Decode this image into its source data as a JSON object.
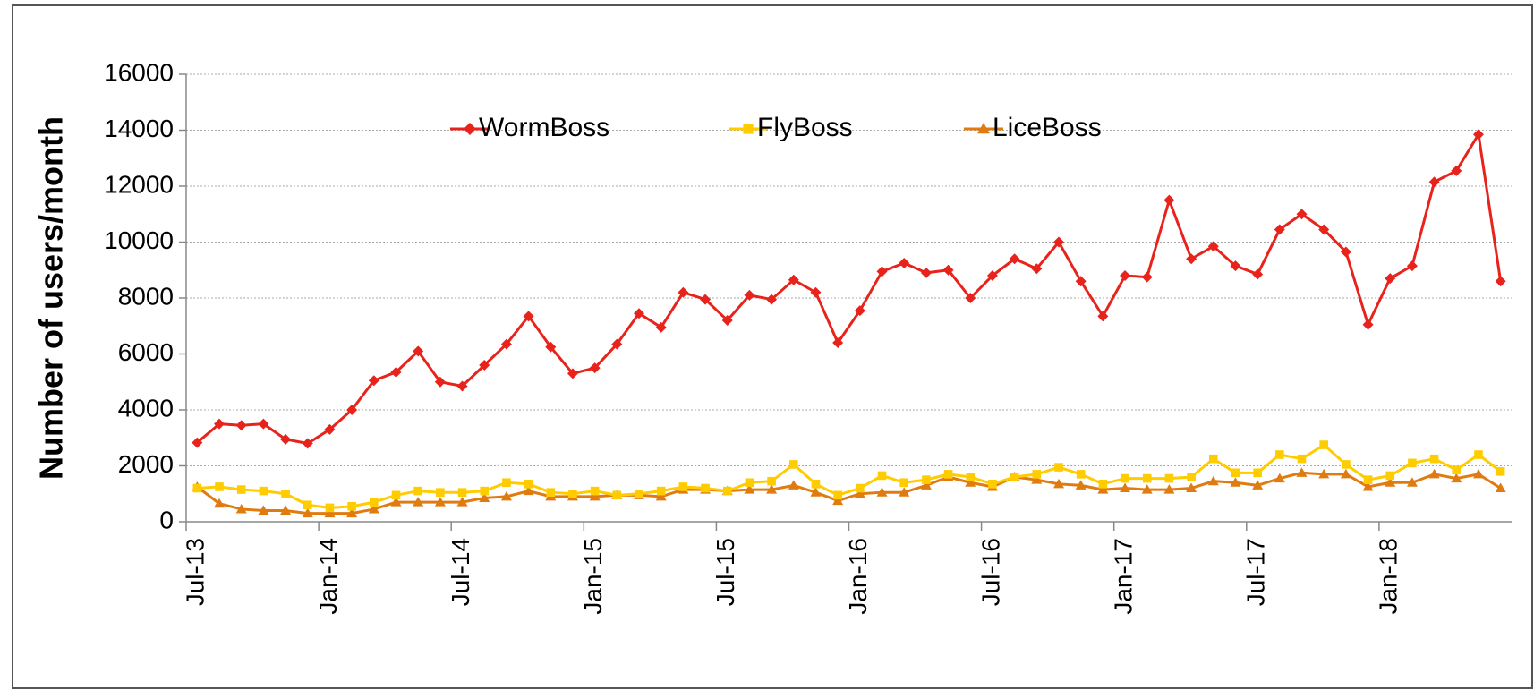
{
  "chart_data": {
    "type": "line",
    "y_label": "Number of users/month",
    "categories": [
      "Jul-13",
      null,
      null,
      null,
      null,
      null,
      "Jan-14",
      null,
      null,
      null,
      null,
      null,
      "Jul-14",
      null,
      null,
      null,
      null,
      null,
      "Jan-15",
      null,
      null,
      null,
      null,
      null,
      "Jul-15",
      null,
      null,
      null,
      null,
      null,
      "Jan-16",
      null,
      null,
      null,
      null,
      null,
      "Jul-16",
      null,
      null,
      null,
      null,
      null,
      "Jan-17",
      null,
      null,
      null,
      null,
      null,
      "Jul-17",
      null,
      null,
      null,
      null,
      null,
      "Jan-18",
      null,
      null,
      null,
      null,
      null
    ],
    "series": [
      {
        "name": "WormBoss",
        "color": "#e8231b",
        "marker": "diamond",
        "values": [
          2830,
          3500,
          3450,
          3500,
          2950,
          2800,
          3300,
          4000,
          5050,
          5350,
          6100,
          5000,
          4850,
          5600,
          6350,
          7350,
          6250,
          5300,
          5500,
          6350,
          7450,
          6950,
          8200,
          7950,
          7200,
          8100,
          7950,
          8650,
          8200,
          6400,
          7550,
          8950,
          9250,
          8900,
          9000,
          8000,
          8800,
          9400,
          9050,
          10000,
          8600,
          7350,
          8800,
          8750,
          11500,
          9400,
          9850,
          9150,
          8850,
          10450,
          11000,
          10450,
          9650,
          7050,
          8700,
          9150,
          12150,
          12550,
          13850,
          8600
        ]
      },
      {
        "name": "FlyBoss",
        "color": "#ffcc00",
        "marker": "square",
        "values": [
          1200,
          1250,
          1150,
          1100,
          1000,
          600,
          500,
          550,
          700,
          950,
          1100,
          1050,
          1050,
          1100,
          1400,
          1350,
          1050,
          1000,
          1100,
          950,
          1000,
          1100,
          1250,
          1200,
          1100,
          1400,
          1450,
          2050,
          1350,
          950,
          1200,
          1650,
          1400,
          1500,
          1700,
          1600,
          1350,
          1600,
          1700,
          1950,
          1700,
          1350,
          1550,
          1550,
          1550,
          1600,
          2250,
          1750,
          1750,
          2400,
          2250,
          2750,
          2050,
          1500,
          1650,
          2100,
          2250,
          1850,
          2400,
          1800
        ]
      },
      {
        "name": "LiceBoss",
        "color": "#e07b10",
        "marker": "triangle",
        "values": [
          1250,
          650,
          450,
          400,
          400,
          300,
          300,
          300,
          450,
          700,
          700,
          700,
          700,
          850,
          900,
          1100,
          900,
          900,
          900,
          950,
          950,
          900,
          1150,
          1150,
          1100,
          1150,
          1150,
          1300,
          1050,
          750,
          1000,
          1050,
          1050,
          1300,
          1600,
          1400,
          1250,
          1600,
          1500,
          1350,
          1300,
          1150,
          1200,
          1150,
          1150,
          1200,
          1450,
          1400,
          1300,
          1550,
          1750,
          1700,
          1700,
          1250,
          1400,
          1400,
          1700,
          1550,
          1700,
          1200
        ]
      }
    ],
    "ylim": [
      0,
      16000
    ],
    "yticks": [
      0,
      2000,
      4000,
      6000,
      8000,
      10000,
      12000,
      14000,
      16000
    ],
    "grid": true,
    "legend": "top"
  }
}
